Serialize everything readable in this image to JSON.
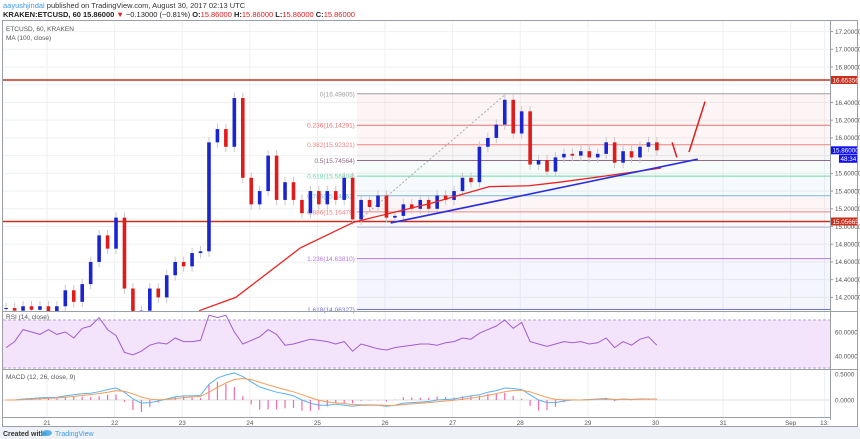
{
  "header": {
    "author": "aayushjindal",
    "published": " published on TradingView.com, August 30, 2017 02:13 UTC",
    "symbol_line": "KRAKEN:ETCUSD, 60  15.86000",
    "change": "−0.13000 (−0.81%)",
    "ohlc": [
      {
        "k": "O:",
        "v": "15.86000"
      },
      {
        "k": "H:",
        "v": "15.86000"
      },
      {
        "k": "L:",
        "v": "15.86000"
      },
      {
        "k": "C:",
        "v": "15.86000"
      }
    ]
  },
  "panes": {
    "price_title": "ETCUSD, 60, KRAKEN",
    "ma_title": "MA (100, close)",
    "rsi_title": "RSI (14, close)",
    "macd_title": "MACD (12, 26, close, 9)"
  },
  "footer": {
    "created_with": "Created with",
    "brand": "TradingView"
  },
  "colors": {
    "up": "#1a25d0",
    "down": "#e01b1b",
    "ma": "#f02020",
    "trendline": "#2a2ee0",
    "hline": "#c8301e",
    "rsi": "#a25ccf",
    "rsi_band": "#f3e4fc",
    "macd": "#5ab2f0",
    "signal": "#f59c5a",
    "hist": "#f06bab",
    "last_price": "#1212f0"
  },
  "chart_data": {
    "type": "candlestick",
    "symbol": "ETCUSD",
    "interval": "60",
    "price_axis": {
      "ticks": [
        "17.20000",
        "17.00000",
        "16.80000",
        "16.40000",
        "16.20000",
        "16.00000",
        "15.60000",
        "15.40000",
        "15.20000",
        "15.00000",
        "14.80000",
        "14.60000",
        "14.40000",
        "14.20000"
      ],
      "range": [
        14.0,
        17.3
      ]
    },
    "time_axis": {
      "ticks": [
        {
          "label": "21",
          "time": "2017-08-21T00:00"
        },
        {
          "label": "22",
          "time": "2017-08-22T00:00"
        },
        {
          "label": "23",
          "time": "2017-08-23T00:00"
        },
        {
          "label": "24",
          "time": "2017-08-24T00:00"
        },
        {
          "label": "25",
          "time": "2017-08-25T00:00"
        },
        {
          "label": "26",
          "time": "2017-08-26T00:00"
        },
        {
          "label": "27",
          "time": "2017-08-27T00:00"
        },
        {
          "label": "28",
          "time": "2017-08-28T00:00"
        },
        {
          "label": "29",
          "time": "2017-08-29T00:00"
        },
        {
          "label": "30",
          "time": "2017-08-30T00:00"
        },
        {
          "label": "31",
          "time": "2017-08-31T00:00"
        },
        {
          "label": "Sep",
          "time": "2017-09-01T00:00"
        },
        {
          "label": "13:",
          "time": "2017-09-01T12:00"
        }
      ]
    },
    "candles": {
      "start": "2017-08-20T08:00",
      "step_hours": 3,
      "close": [
        14.08,
        14.05,
        14.1,
        14.06,
        14.1,
        14.04,
        14.1,
        14.28,
        14.15,
        14.35,
        14.6,
        14.9,
        14.75,
        15.1,
        14.3,
        14.0,
        14.05,
        14.3,
        14.2,
        14.45,
        14.6,
        14.55,
        14.7,
        14.72,
        15.95,
        16.1,
        15.9,
        16.45,
        15.55,
        15.25,
        15.4,
        15.8,
        15.3,
        15.5,
        15.3,
        15.15,
        15.4,
        15.25,
        15.4,
        15.3,
        15.55,
        15.08,
        15.3,
        15.22,
        15.35,
        15.1,
        15.12,
        15.25,
        15.2,
        15.3,
        15.2,
        15.35,
        15.3,
        15.4,
        15.55,
        15.5,
        15.9,
        16.0,
        16.15,
        16.43,
        16.05,
        16.3,
        15.7,
        15.75,
        15.62,
        15.78,
        15.82,
        15.8,
        15.85,
        15.78,
        15.82,
        15.95,
        15.72,
        15.85,
        15.78,
        15.9,
        15.95,
        15.86
      ]
    },
    "ma100": [
      [
        "2017-08-23T06:00",
        14.05
      ],
      [
        "2017-08-23T19:00",
        14.2
      ],
      [
        "2017-08-24T18:00",
        14.76
      ],
      [
        "2017-08-25T13:00",
        15.05
      ],
      [
        "2017-08-26T16:00",
        15.26
      ],
      [
        "2017-08-27T13:00",
        15.45
      ],
      [
        "2017-08-28T03:00",
        15.46
      ],
      [
        "2017-08-28T14:00",
        15.5
      ],
      [
        "2017-08-29T04:00",
        15.56
      ],
      [
        "2017-08-30T02:00",
        15.66
      ]
    ],
    "horizontal_lines": [
      {
        "value": 16.65356,
        "label": "16.65356"
      },
      {
        "value": 15.05665,
        "label": "15.05665"
      }
    ],
    "last_price": {
      "value": 15.86,
      "label": "15.86000",
      "sub_label": "48:34"
    },
    "fibonacci": {
      "from_time": "2017-08-25T14:00",
      "high_time": "2017-08-27T19:00",
      "levels": [
        {
          "label": "0(16.49805)",
          "value": 16.49805,
          "color": "#9e9e9e"
        },
        {
          "label": "0.236(16.14291)",
          "value": 16.14291,
          "color": "#e57373"
        },
        {
          "label": "0.382(15.92321)",
          "value": 15.92321,
          "color": "#f08080"
        },
        {
          "label": "0.5(15.74564)",
          "value": 15.74564,
          "color": "#8e6b86"
        },
        {
          "label": "0.618(15.56808)",
          "value": 15.56808,
          "color": "#6fd6a8"
        },
        {
          "label": "0.786(15.34662)",
          "value": 15.34662,
          "color": "#7ab8e0"
        },
        {
          "label": "0.886(15.16479)",
          "value": 15.16479,
          "color": "#f08080"
        },
        {
          "label": "",
          "value": 14.99323,
          "color": "#b0b0d0"
        },
        {
          "label": "1.236(14.63810)",
          "value": 14.6381,
          "color": "#b57be3"
        },
        {
          "label": "1.618(14.06327)",
          "value": 14.06327,
          "color": "#7070e0"
        }
      ]
    },
    "trendline": [
      [
        "2017-08-26T02:00",
        15.04
      ],
      [
        "2017-08-30T15:00",
        15.76
      ]
    ],
    "arrow": [
      [
        "2017-08-30T05:54",
        15.95
      ],
      [
        "2017-08-30T07:36",
        15.78
      ],
      [
        "2017-08-30T11:54",
        15.84
      ],
      [
        "2017-08-30T17:36",
        16.41
      ]
    ],
    "rsi": {
      "period": 14,
      "axis_ticks": [
        "60.0000",
        "40.0000"
      ],
      "bands": [
        30,
        70
      ],
      "values": [
        47,
        52,
        62,
        60,
        58,
        62,
        58,
        60,
        55,
        63,
        65,
        72,
        62,
        57,
        43,
        41,
        44,
        49,
        51,
        50,
        55,
        52,
        52,
        53,
        74,
        72,
        74,
        60,
        50,
        53,
        56,
        62,
        58,
        49,
        50,
        52,
        54,
        53,
        52,
        50,
        52,
        44,
        50,
        48,
        46,
        45,
        47,
        48,
        49,
        50,
        50,
        49,
        51,
        52,
        55,
        54,
        59,
        62,
        65,
        70,
        63,
        68,
        52,
        50,
        48,
        50,
        52,
        51,
        52,
        50,
        51,
        55,
        47,
        52,
        49,
        54,
        56,
        49
      ]
    },
    "macd": {
      "params": "12, 26, close, 9",
      "axis_ticks": [
        "0.5000",
        "0.0000"
      ],
      "values": [
        0,
        0,
        0.02,
        0.03,
        0.04,
        0.05,
        0.05,
        0.08,
        0.1,
        0.12,
        0.13,
        0.16,
        0.2,
        0.23,
        0.15,
        0.02,
        -0.06,
        -0.05,
        -0.02,
        0.02,
        0.06,
        0.08,
        0.08,
        0.09,
        0.3,
        0.42,
        0.48,
        0.52,
        0.45,
        0.35,
        0.25,
        0.2,
        0.15,
        0.12,
        0.08,
        0.0,
        -0.06,
        -0.1,
        -0.1,
        -0.08,
        -0.1,
        -0.12,
        -0.1,
        -0.1,
        -0.1,
        -0.12,
        -0.1,
        -0.06,
        -0.05,
        -0.04,
        -0.03,
        0.0,
        0.01,
        0.02,
        0.05,
        0.08,
        0.1,
        0.15,
        0.18,
        0.23,
        0.22,
        0.2,
        0.1,
        0.0,
        -0.05,
        -0.05,
        -0.02,
        0,
        0,
        0.01,
        0.02,
        0.03,
        0.0,
        0.02,
        0.01,
        0.02,
        0.02,
        0.02
      ]
    }
  }
}
